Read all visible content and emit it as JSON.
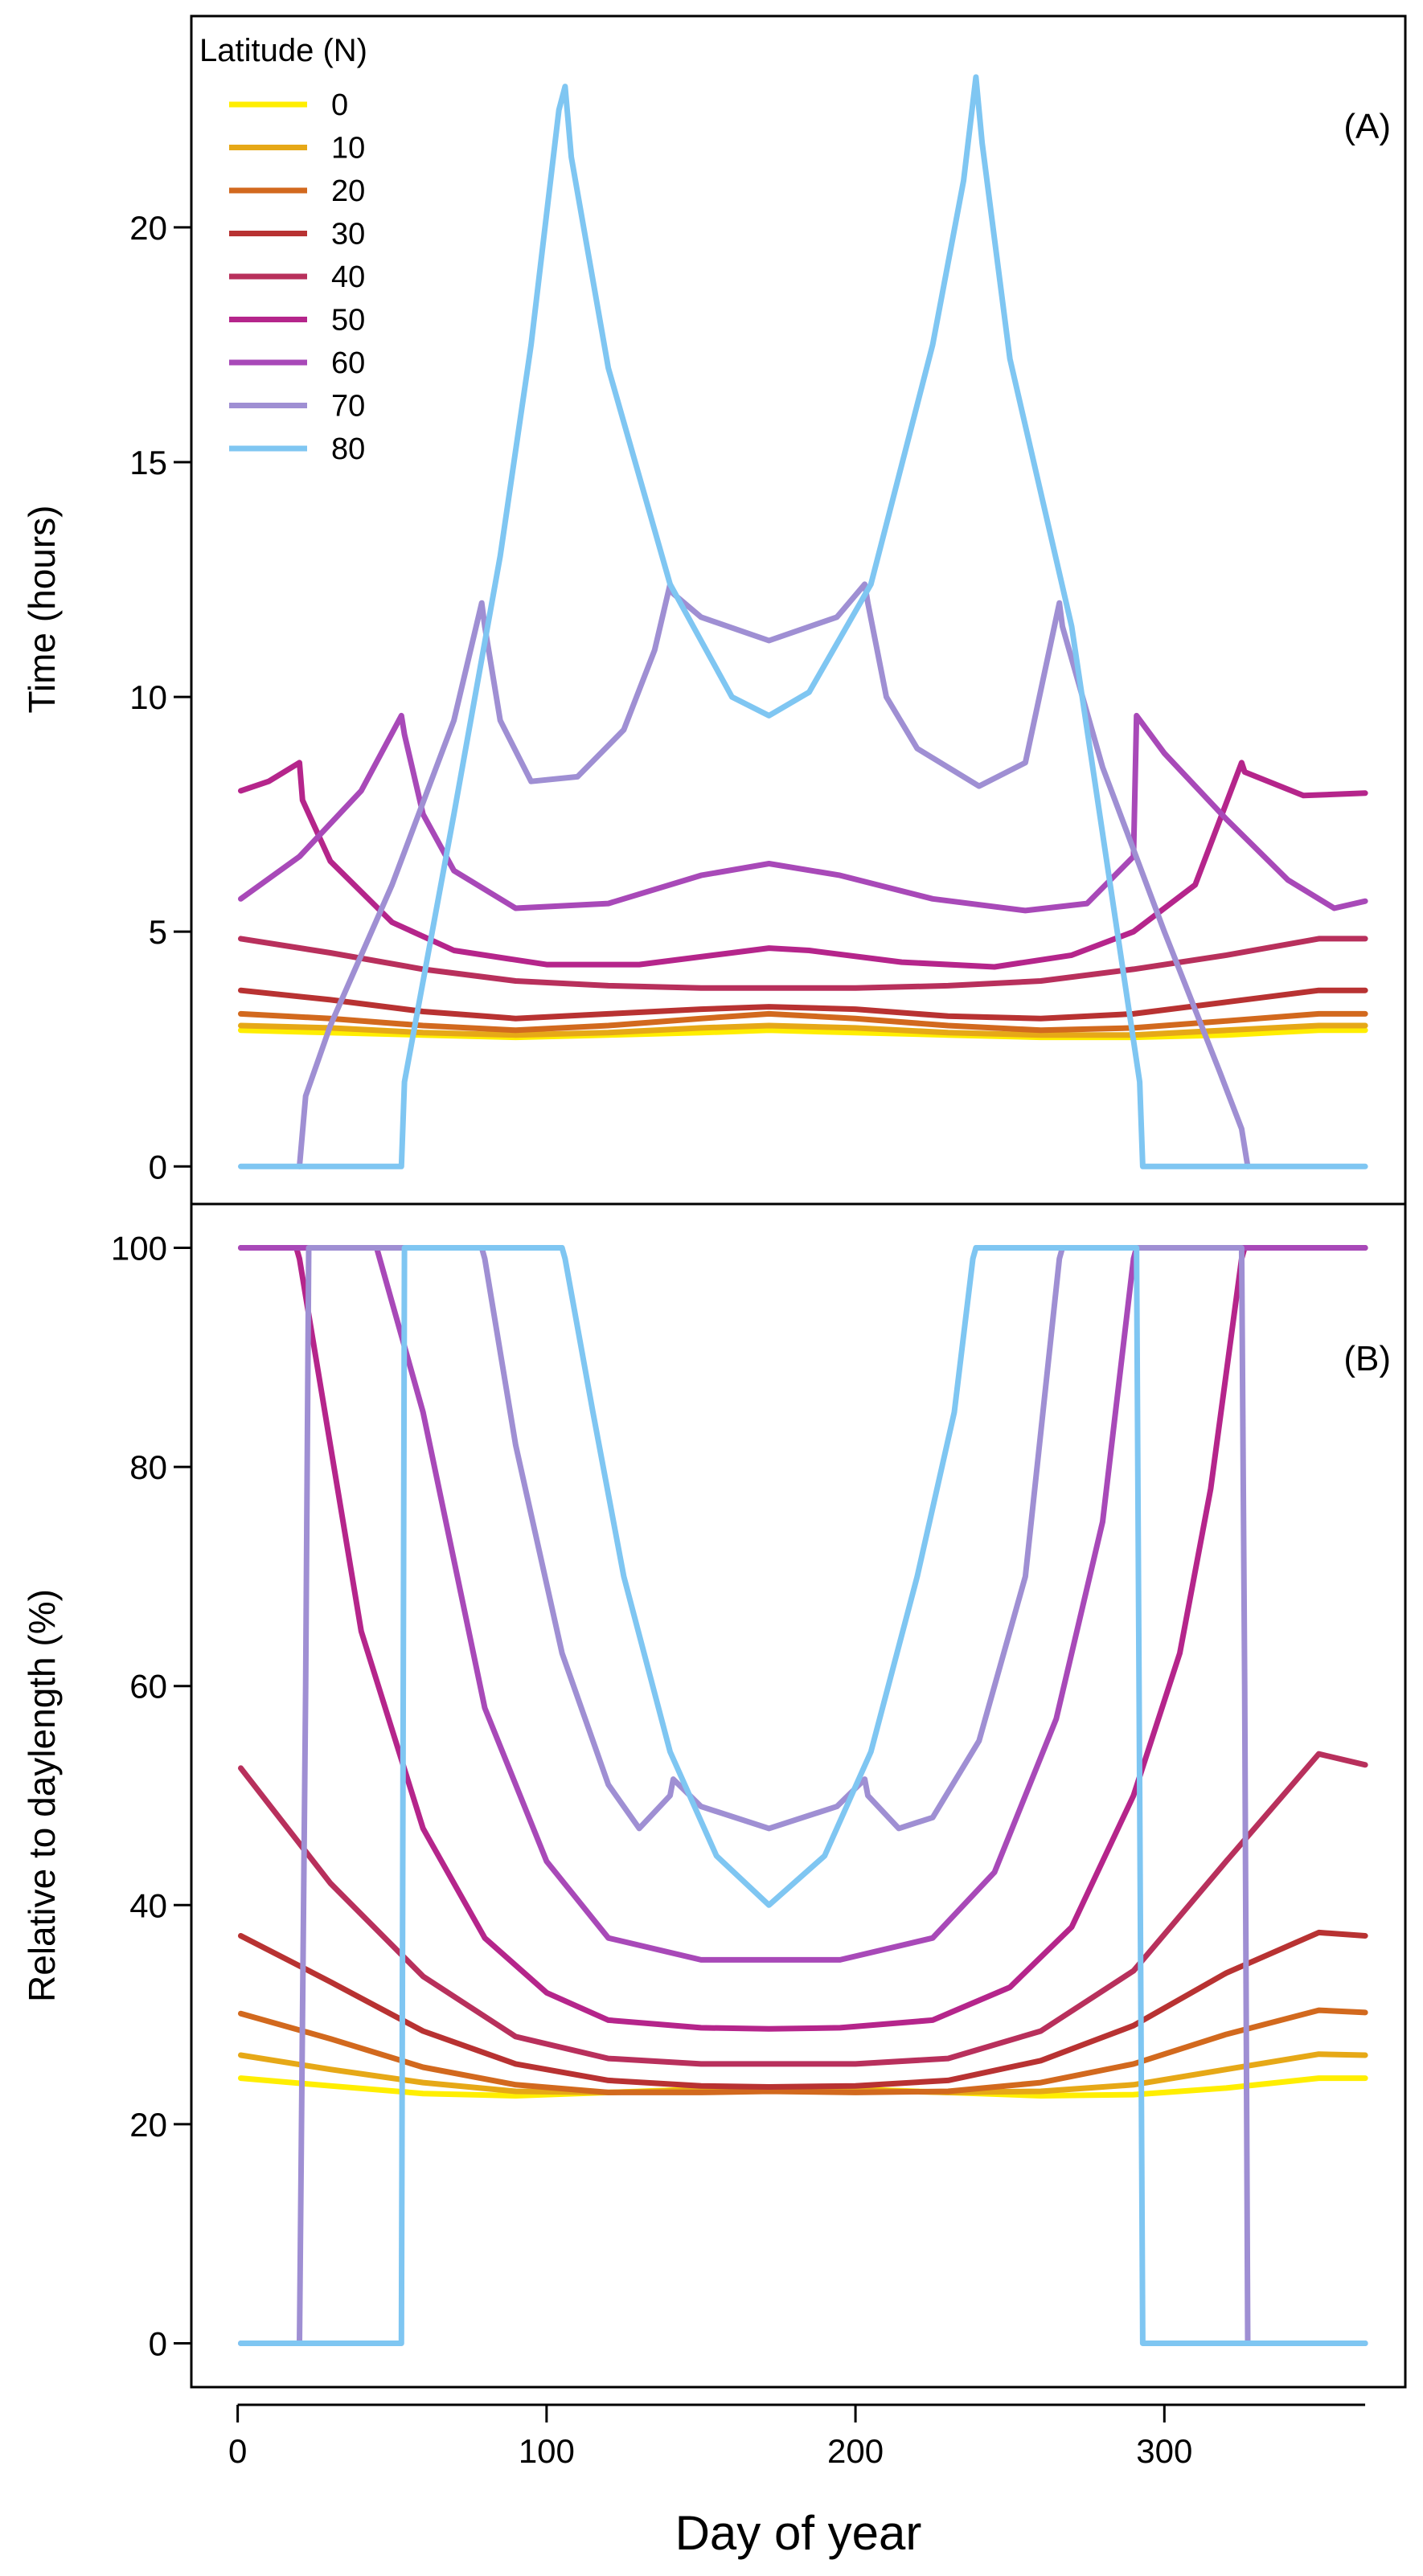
{
  "chart_data": [
    {
      "panel": "(A)",
      "type": "line",
      "ylabel": "Time (hours)",
      "ylim": [
        -0.8,
        24.5
      ],
      "yticks": [
        0,
        5,
        10,
        15,
        20
      ],
      "xlim": [
        -15,
        378
      ],
      "series": [
        {
          "name": "0",
          "color": "#FFEE00",
          "x": [
            1,
            30,
            60,
            90,
            120,
            150,
            172,
            200,
            230,
            260,
            290,
            320,
            350,
            365
          ],
          "y": [
            2.9,
            2.85,
            2.8,
            2.75,
            2.8,
            2.85,
            2.9,
            2.85,
            2.8,
            2.75,
            2.75,
            2.8,
            2.9,
            2.9
          ]
        },
        {
          "name": "10",
          "color": "#E6A817",
          "x": [
            1,
            30,
            60,
            90,
            120,
            150,
            172,
            200,
            230,
            260,
            290,
            320,
            350,
            365
          ],
          "y": [
            3.0,
            2.95,
            2.85,
            2.8,
            2.85,
            2.95,
            3.0,
            2.95,
            2.85,
            2.8,
            2.8,
            2.9,
            3.0,
            3.0
          ]
        },
        {
          "name": "20",
          "color": "#D2691E",
          "x": [
            1,
            30,
            60,
            90,
            120,
            150,
            172,
            200,
            230,
            260,
            290,
            320,
            350,
            365
          ],
          "y": [
            3.25,
            3.15,
            3.0,
            2.9,
            3.0,
            3.15,
            3.25,
            3.15,
            3.0,
            2.9,
            2.95,
            3.1,
            3.25,
            3.25
          ]
        },
        {
          "name": "30",
          "color": "#B83232",
          "x": [
            1,
            30,
            60,
            90,
            120,
            150,
            172,
            200,
            230,
            260,
            290,
            320,
            350,
            365
          ],
          "y": [
            3.75,
            3.55,
            3.3,
            3.15,
            3.25,
            3.35,
            3.4,
            3.35,
            3.2,
            3.15,
            3.25,
            3.5,
            3.75,
            3.75
          ]
        },
        {
          "name": "40",
          "color": "#B8305C",
          "x": [
            1,
            30,
            60,
            90,
            120,
            150,
            172,
            200,
            230,
            260,
            290,
            320,
            350,
            365
          ],
          "y": [
            4.85,
            4.55,
            4.2,
            3.95,
            3.85,
            3.8,
            3.8,
            3.8,
            3.85,
            3.95,
            4.2,
            4.5,
            4.85,
            4.85
          ]
        },
        {
          "name": "50",
          "color": "#B5258B",
          "x": [
            1,
            10,
            20,
            21,
            30,
            50,
            70,
            100,
            130,
            160,
            172,
            185,
            215,
            245,
            270,
            290,
            310,
            325,
            326,
            345,
            365
          ],
          "y": [
            8.0,
            8.2,
            8.6,
            7.8,
            6.5,
            5.2,
            4.6,
            4.3,
            4.3,
            4.55,
            4.65,
            4.6,
            4.35,
            4.25,
            4.5,
            5.0,
            6.0,
            8.6,
            8.4,
            7.9,
            7.95
          ]
        },
        {
          "name": "60",
          "color": "#A849B8",
          "x": [
            1,
            20,
            40,
            53,
            54,
            60,
            70,
            90,
            120,
            150,
            172,
            195,
            225,
            255,
            275,
            290,
            291,
            300,
            320,
            340,
            355,
            365
          ],
          "y": [
            5.7,
            6.6,
            8.0,
            9.6,
            9.2,
            7.5,
            6.3,
            5.5,
            5.6,
            6.2,
            6.45,
            6.2,
            5.7,
            5.45,
            5.6,
            6.6,
            9.6,
            8.8,
            7.4,
            6.1,
            5.5,
            5.65
          ]
        },
        {
          "name": "70",
          "color": "#9F8FD3",
          "x": [
            20,
            22,
            30,
            50,
            70,
            79,
            80,
            85,
            95,
            110,
            125,
            135,
            140,
            141,
            150,
            172,
            194,
            203,
            204,
            210,
            220,
            240,
            255,
            266,
            267,
            280,
            300,
            318,
            325,
            327
          ],
          "y": [
            0,
            1.5,
            3.0,
            6.0,
            9.5,
            12.0,
            11.5,
            9.5,
            8.2,
            8.3,
            9.3,
            11.0,
            12.4,
            12.2,
            11.7,
            11.2,
            11.7,
            12.4,
            12.0,
            10.0,
            8.9,
            8.1,
            8.6,
            12.0,
            11.5,
            8.5,
            5.0,
            2.0,
            0.8,
            0
          ]
        },
        {
          "name": "80",
          "color": "#7FC6F2",
          "x": [
            1,
            53,
            54,
            70,
            85,
            95,
            104,
            106,
            108,
            120,
            140,
            160,
            172,
            185,
            205,
            225,
            235,
            239,
            241,
            250,
            270,
            292,
            293,
            365
          ],
          "y": [
            0,
            0,
            1.8,
            7.5,
            13.0,
            17.5,
            22.5,
            23.0,
            21.5,
            17.0,
            12.4,
            10.0,
            9.6,
            10.1,
            12.4,
            17.5,
            21.0,
            23.2,
            21.8,
            17.2,
            11.5,
            1.8,
            0,
            0
          ]
        }
      ]
    },
    {
      "panel": "(B)",
      "type": "line",
      "ylabel": "Relative to daylength (%)",
      "xlabel": "Day of year",
      "ylim": [
        -4,
        104
      ],
      "yticks": [
        0,
        20,
        40,
        60,
        80,
        100
      ],
      "xticks": [
        0,
        100,
        200,
        300
      ],
      "xlim": [
        -15,
        378
      ],
      "series": [
        {
          "name": "0",
          "color": "#FFEE00",
          "x": [
            1,
            30,
            60,
            90,
            120,
            150,
            172,
            200,
            230,
            260,
            290,
            320,
            350,
            365
          ],
          "y": [
            24.2,
            23.5,
            22.8,
            22.6,
            22.9,
            23.2,
            23.3,
            23.2,
            22.9,
            22.6,
            22.7,
            23.3,
            24.2,
            24.2
          ]
        },
        {
          "name": "10",
          "color": "#E6A817",
          "x": [
            1,
            30,
            60,
            90,
            120,
            150,
            172,
            200,
            230,
            260,
            290,
            320,
            350,
            365
          ],
          "y": [
            26.3,
            25.0,
            23.8,
            23.0,
            22.9,
            23.1,
            23.2,
            23.1,
            22.9,
            23.0,
            23.6,
            25.0,
            26.4,
            26.3
          ]
        },
        {
          "name": "20",
          "color": "#D2691E",
          "x": [
            1,
            30,
            60,
            90,
            120,
            150,
            172,
            200,
            230,
            260,
            290,
            320,
            350,
            365
          ],
          "y": [
            30.1,
            27.8,
            25.2,
            23.6,
            22.9,
            22.9,
            23.0,
            22.9,
            23.0,
            23.8,
            25.5,
            28.2,
            30.4,
            30.2
          ]
        },
        {
          "name": "30",
          "color": "#B83232",
          "x": [
            1,
            30,
            60,
            90,
            120,
            150,
            172,
            200,
            230,
            260,
            290,
            320,
            350,
            365
          ],
          "y": [
            37.2,
            33.0,
            28.5,
            25.5,
            24.0,
            23.5,
            23.4,
            23.5,
            24.0,
            25.8,
            29.0,
            33.8,
            37.5,
            37.2
          ]
        },
        {
          "name": "40",
          "color": "#B8305C",
          "x": [
            1,
            30,
            60,
            90,
            120,
            150,
            172,
            200,
            230,
            260,
            290,
            320,
            350,
            365
          ],
          "y": [
            52.5,
            42.0,
            33.5,
            28.0,
            26.0,
            25.5,
            25.5,
            25.5,
            26.0,
            28.5,
            34.0,
            44.0,
            53.8,
            52.8
          ]
        },
        {
          "name": "50",
          "color": "#B5258B",
          "x": [
            1,
            19,
            20,
            30,
            40,
            60,
            80,
            100,
            120,
            150,
            172,
            195,
            225,
            250,
            270,
            290,
            305,
            315,
            325,
            326,
            365
          ],
          "y": [
            100,
            100,
            99,
            82,
            65,
            47,
            37,
            32,
            29.5,
            28.8,
            28.7,
            28.8,
            29.5,
            32.5,
            38,
            50,
            63,
            78,
            99,
            100,
            100
          ]
        },
        {
          "name": "60",
          "color": "#A849B8",
          "x": [
            1,
            20,
            21,
            22,
            24,
            26,
            35,
            45,
            60,
            80,
            100,
            120,
            150,
            172,
            195,
            225,
            245,
            265,
            280,
            290,
            291,
            365
          ],
          "y": [
            100,
            100,
            100,
            100,
            100,
            100,
            100,
            100,
            85,
            58,
            44,
            37,
            35,
            35,
            35,
            37,
            43,
            57,
            75,
            99,
            100,
            100
          ]
        },
        {
          "name": "70",
          "color": "#9F8FD3",
          "x": [
            1,
            19,
            20,
            21,
            22,
            23,
            24,
            79,
            80,
            90,
            105,
            120,
            130,
            140,
            141,
            150,
            172,
            194,
            203,
            204,
            214,
            225,
            240,
            255,
            266,
            267,
            325,
            326,
            327,
            365
          ],
          "y": [
            0,
            0,
            0,
            30,
            60,
            100,
            100,
            100,
            99,
            82,
            63,
            51,
            47,
            50,
            51.5,
            49,
            47,
            49,
            51.5,
            50,
            47,
            48,
            55,
            70,
            99,
            100,
            100,
            60,
            0,
            0
          ]
        },
        {
          "name": "80",
          "color": "#7FC6F2",
          "x": [
            1,
            53,
            54,
            105,
            106,
            115,
            125,
            140,
            155,
            172,
            190,
            205,
            220,
            232,
            238,
            239,
            290,
            291,
            292,
            293,
            365
          ],
          "y": [
            0,
            0,
            100,
            100,
            99,
            85,
            70,
            54,
            44.5,
            40,
            44.5,
            54,
            70,
            85,
            99,
            100,
            100,
            100,
            50,
            0,
            0
          ]
        }
      ]
    }
  ],
  "legend": {
    "title": "Latitude (N)",
    "entries": [
      "0",
      "10",
      "20",
      "30",
      "40",
      "50",
      "60",
      "70",
      "80"
    ],
    "placement": "top-left"
  }
}
